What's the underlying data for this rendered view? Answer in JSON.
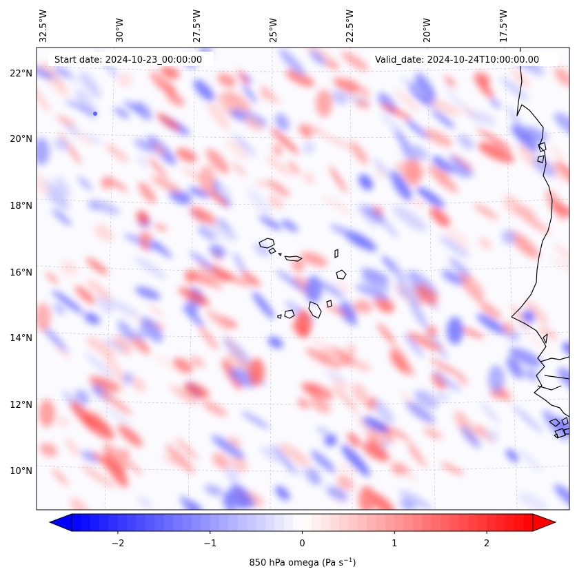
{
  "header": {
    "start_date": "Start date: 2024-10-23_00:00:00",
    "valid_date": "Valid_date: 2024-10-24T10:00:00.00"
  },
  "map": {
    "field": "850 hPa omega",
    "lon_labels": [
      "32.5°W",
      "30°W",
      "27.5°W",
      "25°W",
      "22.5°W",
      "20°W",
      "17.5°W"
    ],
    "lat_labels": [
      "22°N",
      "20°N",
      "18°N",
      "16°N",
      "14°N",
      "12°N",
      "10°N"
    ],
    "lon_range_deg": [
      -32.5,
      -15.0
    ],
    "lat_range_deg": [
      8.9,
      22.8
    ],
    "colormap": "bwr",
    "coastline_color": "#000000",
    "gridlines": "dashed"
  },
  "colorbar": {
    "label_html": "850 hPa omega (Pa s<sup>−1</sup>)",
    "label": "850 hPa omega (Pa s−1)",
    "ticks": [
      "−2",
      "−1",
      "0",
      "1",
      "2"
    ],
    "tick_values": [
      -2,
      -1,
      0,
      1,
      2
    ],
    "range": [
      -2.5,
      2.5
    ],
    "extend": "both",
    "levels": 51,
    "colors": {
      "min": "#0000ff",
      "mid": "#ffffff",
      "max": "#ff0000"
    }
  }
}
